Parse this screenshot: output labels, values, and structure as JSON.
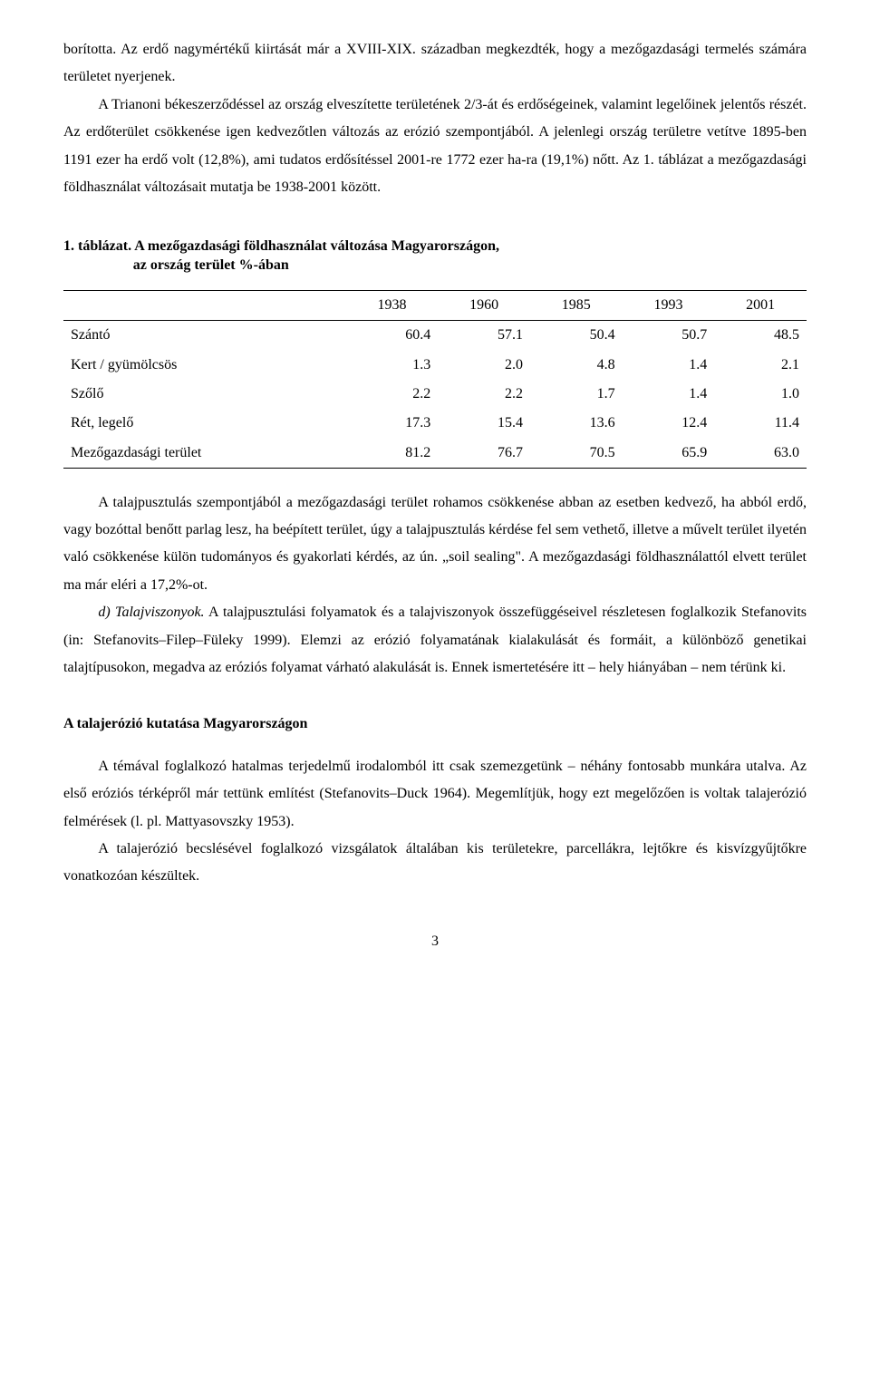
{
  "p1_a": "borította. Az erdő nagymértékű kiirtását már a XVIII-XIX. században megkezdték, hogy a mezőgazdasági termelés számára területet nyerjenek.",
  "p1_b": "A Trianoni békeszerződéssel az ország elveszítette területének 2/3-át és erdőségeinek, valamint legelőinek jelentős részét. Az erdőterület csökkenése igen kedvezőtlen változás az erózió szempontjából. A jelenlegi ország területre vetítve 1895-ben 1191 ezer ha erdő volt (12,8%), ami tudatos erdősítéssel 2001-re 1772 ezer ha-ra (19,1%) nőtt. Az 1. táblázat a mezőgazdasági földhasználat változásait mutatja be 1938-2001 között.",
  "table": {
    "caption_line1": "1. táblázat. A mezőgazdasági földhasználat változása Magyarországon,",
    "caption_line2": "az ország terület %-ában",
    "headers": [
      "1938",
      "1960",
      "1985",
      "1993",
      "2001"
    ],
    "rows": [
      {
        "label": "Szántó",
        "v": [
          "60.4",
          "57.1",
          "50.4",
          "50.7",
          "48.5"
        ]
      },
      {
        "label": "Kert / gyümölcsös",
        "v": [
          "1.3",
          "2.0",
          "4.8",
          "1.4",
          "2.1"
        ]
      },
      {
        "label": "Szőlő",
        "v": [
          "2.2",
          "2.2",
          "1.7",
          "1.4",
          "1.0"
        ]
      },
      {
        "label": "Rét, legelő",
        "v": [
          "17.3",
          "15.4",
          "13.6",
          "12.4",
          "11.4"
        ]
      },
      {
        "label": "Mezőgazdasági terület",
        "v": [
          "81.2",
          "76.7",
          "70.5",
          "65.9",
          "63.0"
        ]
      }
    ]
  },
  "p2": "A talajpusztulás szempontjából a mezőgazdasági terület rohamos csökkenése abban az esetben kedvező, ha abból erdő, vagy bozóttal benőtt parlag lesz, ha beépített terület, úgy a talajpusztulás kérdése fel sem vethető, illetve a művelt terület ilyetén való csökkenése külön tudományos és gyakorlati kérdés, az ún. „soil sealing\". A mezőgazdasági földhasználattól elvett terület ma már eléri a 17,2%-ot.",
  "p3_prefix": "d) Talajviszonyok.",
  "p3_rest": " A talajpusztulási folyamatok és a talajviszonyok összefüggéseivel részletesen foglalkozik Stefanovits (in: Stefanovits–Filep–Füleky 1999). Elemzi az erózió folyamatának kialakulását és formáit, a különböző genetikai talajtípusokon, megadva az eróziós folyamat várható alakulását is. Ennek ismertetésére itt – hely hiányában – nem térünk ki.",
  "h2": "A talajerózió kutatása Magyarországon",
  "p4": "A témával foglalkozó hatalmas terjedelmű irodalomból itt csak szemezgetünk – néhány fontosabb munkára utalva. Az első eróziós térképről már tettünk említést (Stefanovits–Duck 1964). Megemlítjük, hogy ezt megelőzően is voltak talajerózió felmérések (l. pl. Mattyasovszky 1953).",
  "p5": "A talajerózió becslésével foglalkozó vizsgálatok általában kis területekre, parcellákra, lejtőkre és kisvízgyűjtőkre vonatkozóan készültek.",
  "page_number": "3"
}
